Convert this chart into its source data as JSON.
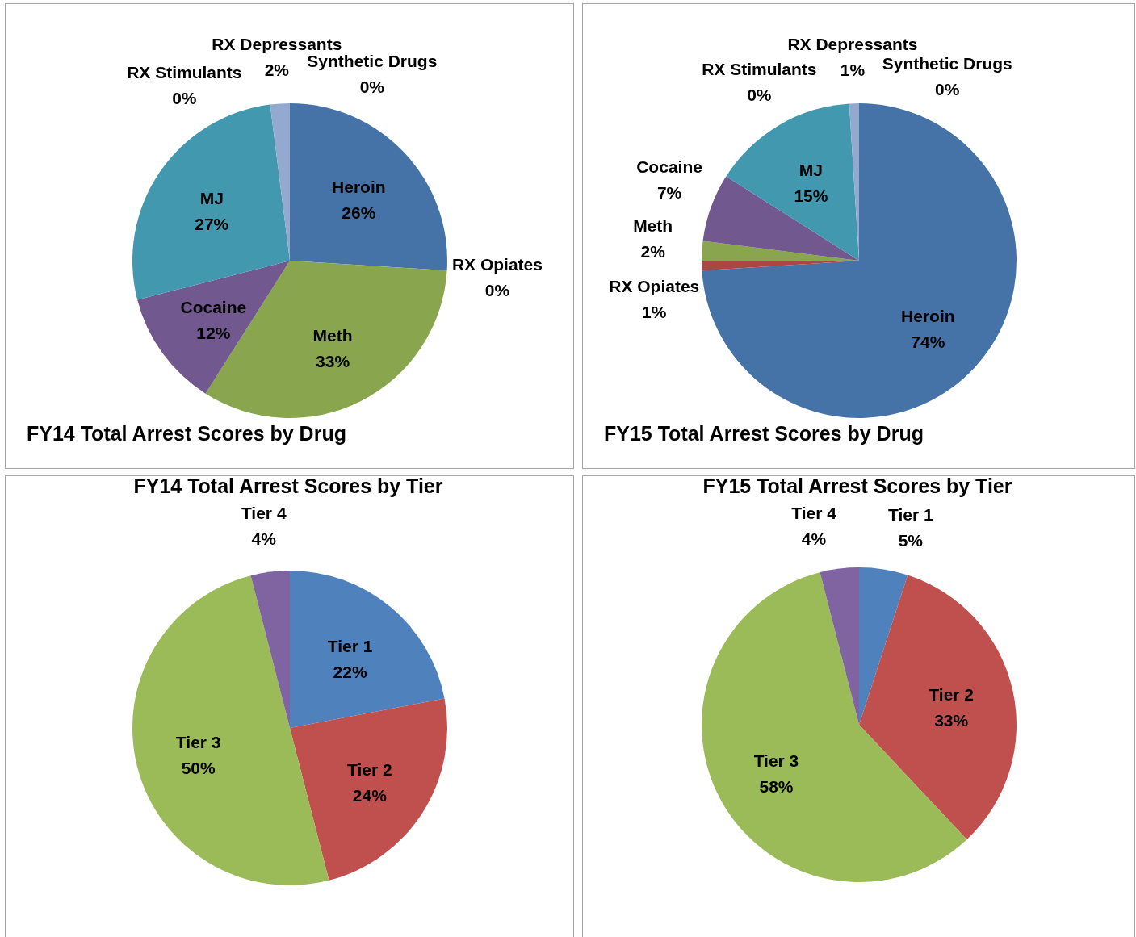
{
  "chart_data": [
    {
      "type": "pie",
      "title": "FY14 Total Arrest Scores by Drug",
      "categories": [
        "Heroin",
        "RX Opiates",
        "Meth",
        "Cocaine",
        "MJ",
        "RX Stimulants",
        "RX Depressants",
        "Synthetic Drugs"
      ],
      "values": [
        26,
        0,
        33,
        12,
        27,
        0,
        2,
        0
      ],
      "value_labels": [
        "26%",
        "0%",
        "33%",
        "12%",
        "27%",
        "0%",
        "2%",
        "0%"
      ],
      "colors": [
        "#4572a7",
        "#aa4643",
        "#89a54e",
        "#71588f",
        "#4198af",
        "#db843d",
        "#93a9cf",
        "#d19392"
      ]
    },
    {
      "type": "pie",
      "title": "FY15 Total Arrest Scores by Drug",
      "categories": [
        "Heroin",
        "RX Opiates",
        "Meth",
        "Cocaine",
        "MJ",
        "RX Stimulants",
        "RX Depressants",
        "Synthetic Drugs"
      ],
      "values": [
        74,
        1,
        2,
        7,
        15,
        0,
        1,
        0
      ],
      "value_labels": [
        "74%",
        "1%",
        "2%",
        "7%",
        "15%",
        "0%",
        "1%",
        "0%"
      ],
      "colors": [
        "#4572a7",
        "#aa4643",
        "#89a54e",
        "#71588f",
        "#4198af",
        "#db843d",
        "#93a9cf",
        "#d19392"
      ]
    },
    {
      "type": "pie",
      "title": "FY14 Total Arrest Scores by Tier",
      "categories": [
        "Tier 1",
        "Tier 2",
        "Tier 3",
        "Tier 4"
      ],
      "values": [
        22,
        24,
        50,
        4
      ],
      "value_labels": [
        "22%",
        "24%",
        "50%",
        "4%"
      ],
      "colors": [
        "#4f81bd",
        "#c0504d",
        "#9bbb59",
        "#8064a2"
      ]
    },
    {
      "type": "pie",
      "title": "FY15 Total Arrest Scores by Tier",
      "categories": [
        "Tier 1",
        "Tier 2",
        "Tier 3",
        "Tier 4"
      ],
      "values": [
        5,
        33,
        58,
        4
      ],
      "value_labels": [
        "5%",
        "33%",
        "58%",
        "4%"
      ],
      "colors": [
        "#4f81bd",
        "#c0504d",
        "#9bbb59",
        "#8064a2"
      ]
    }
  ]
}
